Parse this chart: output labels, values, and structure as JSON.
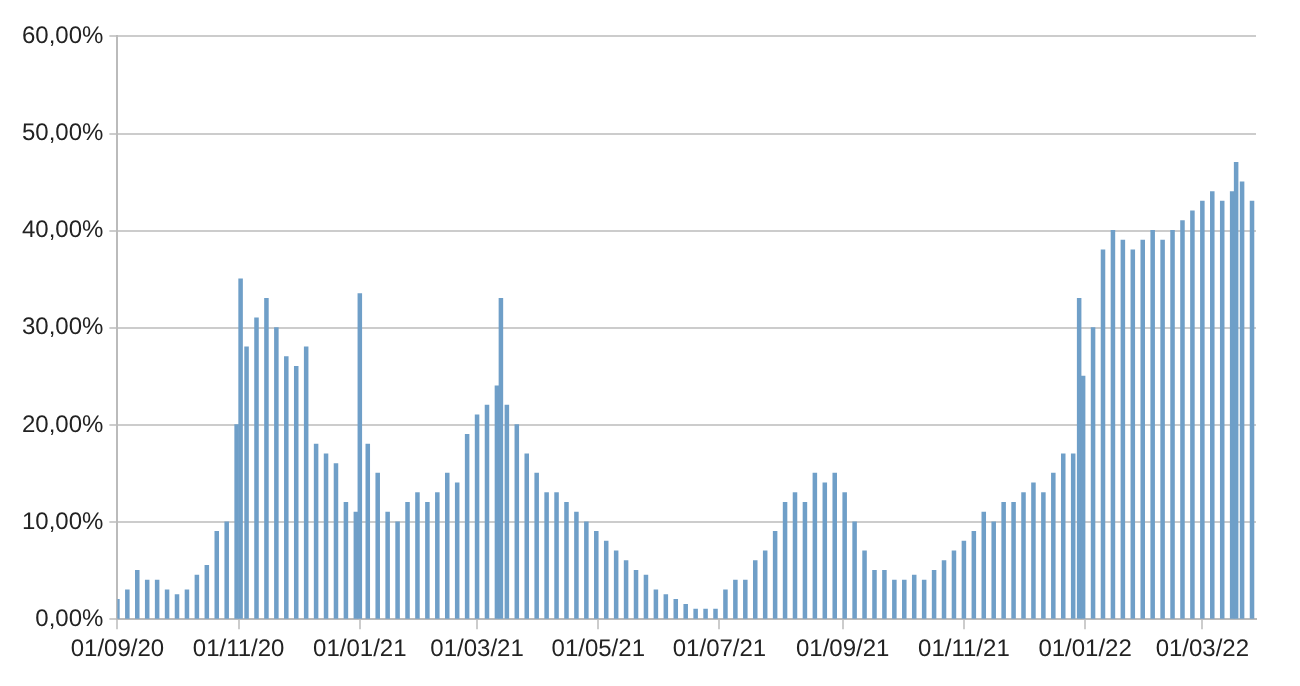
{
  "chart_data": {
    "type": "bar",
    "color": "#6f9fc8",
    "x": [
      "2020-09-01",
      "2020-09-06",
      "2020-09-11",
      "2020-09-16",
      "2020-09-21",
      "2020-09-26",
      "2020-10-01",
      "2020-10-06",
      "2020-10-11",
      "2020-10-16",
      "2020-10-21",
      "2020-10-26",
      "2020-10-31",
      "2020-11-02",
      "2020-11-05",
      "2020-11-10",
      "2020-11-15",
      "2020-11-20",
      "2020-11-25",
      "2020-11-30",
      "2020-12-05",
      "2020-12-10",
      "2020-12-15",
      "2020-12-20",
      "2020-12-25",
      "2020-12-30",
      "2021-01-01",
      "2021-01-05",
      "2021-01-10",
      "2021-01-15",
      "2021-01-20",
      "2021-01-25",
      "2021-01-30",
      "2021-02-04",
      "2021-02-09",
      "2021-02-14",
      "2021-02-19",
      "2021-02-24",
      "2021-03-01",
      "2021-03-06",
      "2021-03-11",
      "2021-03-13",
      "2021-03-16",
      "2021-03-21",
      "2021-03-26",
      "2021-03-31",
      "2021-04-05",
      "2021-04-10",
      "2021-04-15",
      "2021-04-20",
      "2021-04-25",
      "2021-04-30",
      "2021-05-05",
      "2021-05-10",
      "2021-05-15",
      "2021-05-20",
      "2021-05-25",
      "2021-05-30",
      "2021-06-04",
      "2021-06-09",
      "2021-06-14",
      "2021-06-19",
      "2021-06-24",
      "2021-06-29",
      "2021-07-04",
      "2021-07-09",
      "2021-07-14",
      "2021-07-19",
      "2021-07-24",
      "2021-07-29",
      "2021-08-03",
      "2021-08-08",
      "2021-08-13",
      "2021-08-18",
      "2021-08-23",
      "2021-08-28",
      "2021-09-02",
      "2021-09-07",
      "2021-09-12",
      "2021-09-17",
      "2021-09-22",
      "2021-09-27",
      "2021-10-02",
      "2021-10-07",
      "2021-10-12",
      "2021-10-17",
      "2021-10-22",
      "2021-10-27",
      "2021-11-01",
      "2021-11-06",
      "2021-11-11",
      "2021-11-16",
      "2021-11-21",
      "2021-11-26",
      "2021-12-01",
      "2021-12-06",
      "2021-12-11",
      "2021-12-16",
      "2021-12-21",
      "2021-12-26",
      "2021-12-29",
      "2021-12-31",
      "2022-01-05",
      "2022-01-10",
      "2022-01-15",
      "2022-01-20",
      "2022-01-25",
      "2022-01-30",
      "2022-02-04",
      "2022-02-09",
      "2022-02-14",
      "2022-02-19",
      "2022-02-24",
      "2022-03-01",
      "2022-03-06",
      "2022-03-11",
      "2022-03-16",
      "2022-03-18",
      "2022-03-21",
      "2022-03-26"
    ],
    "values": [
      2,
      3,
      5,
      4,
      4,
      3,
      2.5,
      3,
      4.5,
      5.5,
      9,
      10,
      20,
      35,
      28,
      31,
      33,
      30,
      27,
      26,
      28,
      18,
      17,
      16,
      12,
      11,
      33.5,
      18,
      15,
      11,
      10,
      12,
      13,
      12,
      13,
      15,
      14,
      19,
      21,
      22,
      24,
      33,
      22,
      20,
      17,
      15,
      13,
      13,
      12,
      11,
      10,
      9,
      8,
      7,
      6,
      5,
      4.5,
      3,
      2.5,
      2,
      1.5,
      1,
      1,
      1,
      3,
      4,
      4,
      6,
      7,
      9,
      12,
      13,
      12,
      15,
      14,
      15,
      13,
      10,
      7,
      5,
      5,
      4,
      4,
      4.5,
      4,
      5,
      6,
      7,
      8,
      9,
      11,
      10,
      12,
      12,
      13,
      14,
      13,
      15,
      17,
      17,
      33,
      25,
      30,
      38,
      40,
      39,
      38,
      39,
      40,
      39,
      40,
      41,
      42,
      43,
      44,
      43,
      44,
      47,
      45,
      43
    ],
    "xlim": [
      "2020-09-01",
      "2022-03-28"
    ],
    "xticks": [
      {
        "value": "2020-09-01",
        "label": "01/09/20"
      },
      {
        "value": "2020-11-01",
        "label": "01/11/20"
      },
      {
        "value": "2021-01-01",
        "label": "01/01/21"
      },
      {
        "value": "2021-03-01",
        "label": "01/03/21"
      },
      {
        "value": "2021-05-01",
        "label": "01/05/21"
      },
      {
        "value": "2021-07-01",
        "label": "01/07/21"
      },
      {
        "value": "2021-09-01",
        "label": "01/09/21"
      },
      {
        "value": "2021-11-01",
        "label": "01/11/21"
      },
      {
        "value": "2022-01-01",
        "label": "01/01/22"
      },
      {
        "value": "2022-03-01",
        "label": "01/03/22"
      }
    ],
    "ylim": [
      0,
      60
    ],
    "yticks": [
      {
        "value": 0,
        "label": "0,00%"
      },
      {
        "value": 10,
        "label": "10,00%"
      },
      {
        "value": 20,
        "label": "20,00%"
      },
      {
        "value": 30,
        "label": "30,00%"
      },
      {
        "value": 40,
        "label": "40,00%"
      },
      {
        "value": 50,
        "label": "50,00%"
      },
      {
        "value": 60,
        "label": "60,00%"
      }
    ],
    "grid": "y"
  }
}
